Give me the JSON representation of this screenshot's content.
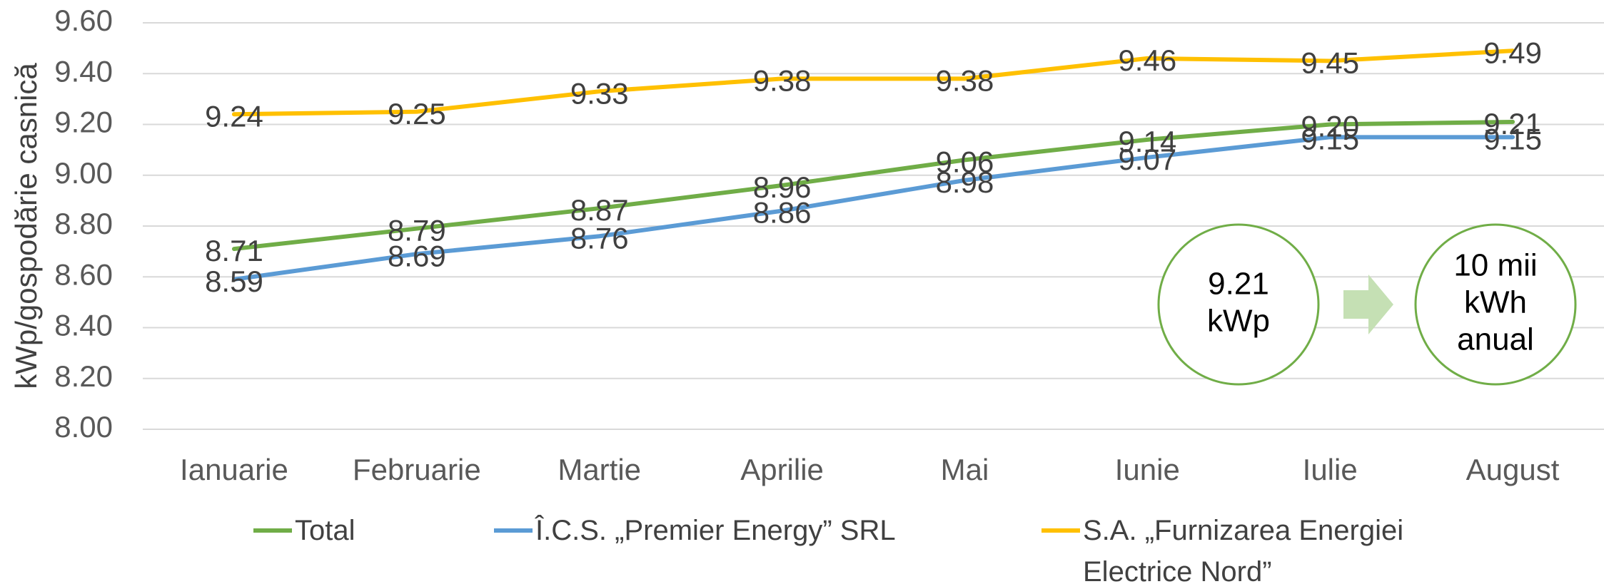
{
  "chart_data": {
    "type": "line",
    "y_axis_label": "kWp/gospodărie casnică",
    "categories": [
      "Ianuarie",
      "Februarie",
      "Martie",
      "Aprilie",
      "Mai",
      "Iunie",
      "Iulie",
      "August"
    ],
    "series": [
      {
        "name": "Total",
        "color": "#70ad47",
        "values": [
          8.71,
          8.79,
          8.87,
          8.96,
          9.06,
          9.14,
          9.2,
          9.21
        ],
        "value_labels": [
          "8.71",
          "8.79",
          "8.87",
          "8.96",
          "9.06",
          "9.14",
          "9.20",
          "9.21"
        ]
      },
      {
        "name": "Î.C.S. „Premier Energy” SRL",
        "color": "#5b9bd5",
        "values": [
          8.59,
          8.69,
          8.76,
          8.86,
          8.98,
          9.07,
          9.15,
          9.15
        ],
        "value_labels": [
          "8.59",
          "8.69",
          "8.76",
          "8.86",
          "8.98",
          "9.07",
          "9.15",
          "9.15"
        ]
      },
      {
        "name": "S.A. „Furnizarea Energiei Electrice Nord”",
        "color": "#ffc000",
        "values": [
          9.24,
          9.25,
          9.33,
          9.38,
          9.38,
          9.46,
          9.45,
          9.49
        ],
        "value_labels": [
          "9.24",
          "9.25",
          "9.33",
          "9.38",
          "9.38",
          "9.46",
          "9.45",
          "9.49"
        ]
      }
    ],
    "ylim": [
      8,
      9.6
    ],
    "yticks": [
      {
        "value": 8,
        "label": "8.00"
      },
      {
        "value": 8.2,
        "label": "8.20"
      },
      {
        "value": 8.4,
        "label": "8.40"
      },
      {
        "value": 8.6,
        "label": "8.60"
      },
      {
        "value": 8.8,
        "label": "8.80"
      },
      {
        "value": 9,
        "label": "9.00"
      },
      {
        "value": 9.2,
        "label": "9.20"
      },
      {
        "value": 9.4,
        "label": "9.40"
      },
      {
        "value": 9.6,
        "label": "9.60"
      }
    ],
    "grid": true,
    "legend": "bottom",
    "annotations": [
      {
        "lines": [
          "9.21",
          "kWp"
        ]
      },
      {
        "lines": [
          "10 mii",
          "kWh",
          "anual"
        ]
      }
    ]
  }
}
